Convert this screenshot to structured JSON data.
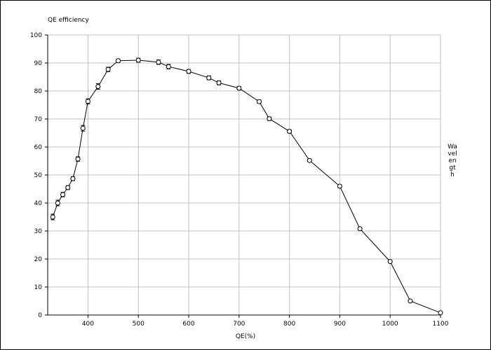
{
  "chart_data": {
    "type": "line",
    "title": "QE efficiency",
    "xlabel": "QE(%)",
    "ylabel": "Wavelength",
    "xlim": [
      320,
      1100
    ],
    "ylim": [
      0,
      100
    ],
    "xticks": [
      400,
      500,
      600,
      700,
      800,
      900,
      1000,
      1100
    ],
    "yticks": [
      0,
      10,
      20,
      30,
      40,
      50,
      60,
      70,
      80,
      90,
      100
    ],
    "grid": true,
    "legend": "none",
    "series": [
      {
        "x": [
          330,
          340,
          350,
          360,
          370,
          380,
          390,
          400,
          420,
          440,
          460,
          500,
          540,
          560,
          600,
          640,
          660,
          700,
          740,
          760,
          800,
          840,
          900,
          940,
          1000,
          1040,
          1100
        ],
        "y": [
          35,
          40,
          43,
          45.5,
          48.7,
          55.7,
          66.7,
          76.3,
          81.6,
          87.7,
          90.8,
          91,
          90.3,
          88.7,
          87,
          84.7,
          82.9,
          81,
          76.2,
          70.1,
          65.6,
          55.2,
          46,
          30.8,
          19.1,
          5,
          0.8
        ],
        "error": [
          1,
          1,
          0.8,
          0.7,
          0.7,
          0.8,
          1,
          0.9,
          1,
          0.8,
          0.6,
          0.7,
          0.8,
          0.8,
          0.7,
          0.7,
          0.7,
          0.6,
          0.6,
          0.6,
          0.6,
          0.5,
          0.5,
          0.5,
          0.4,
          0.3,
          0.2
        ]
      }
    ],
    "colors": {
      "line": "#000000",
      "grid": "#c0c0c0",
      "background": "#ffffff"
    }
  }
}
